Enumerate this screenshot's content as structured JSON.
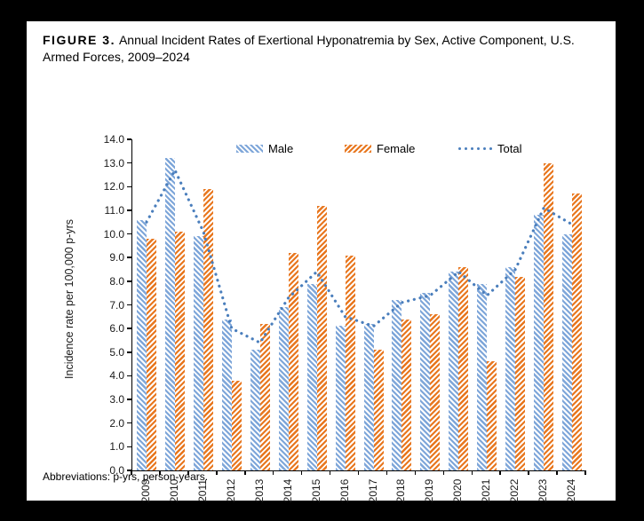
{
  "figure": {
    "label": "FIGURE 3.",
    "title": "Annual Incident Rates of Exertional Hyponatremia by Sex, Active Component, U.S. Armed Forces, 2009–2024"
  },
  "footnote": "Abbreviations: p-yrs, person-years.",
  "colors": {
    "male_bar": "#7ea6d9",
    "female_bar": "#e8771f",
    "total_line": "#4a7ebc",
    "axis": "#000000"
  },
  "chart_data": {
    "type": "bar",
    "subtype": "grouped bars with dotted total line overlay",
    "categories": [
      "2009",
      "2010",
      "2011",
      "2012",
      "2013",
      "2014",
      "2015",
      "2016",
      "2017",
      "2018",
      "2019",
      "2020",
      "2021",
      "2022",
      "2023",
      "2024"
    ],
    "series": [
      {
        "name": "Male",
        "type": "bar",
        "color": "#7ea6d9",
        "hatch": "diagonal-forward",
        "values": [
          10.6,
          13.2,
          9.9,
          6.4,
          5.1,
          6.9,
          7.9,
          6.1,
          6.2,
          7.2,
          7.5,
          8.4,
          7.9,
          8.6,
          10.8,
          10.0
        ]
      },
      {
        "name": "Female",
        "type": "bar",
        "color": "#e8771f",
        "hatch": "diagonal-back",
        "values": [
          9.8,
          10.1,
          11.9,
          3.8,
          6.2,
          9.2,
          11.2,
          9.1,
          5.1,
          6.4,
          6.6,
          8.6,
          4.6,
          8.2,
          13.0,
          11.7
        ]
      },
      {
        "name": "Total",
        "type": "line",
        "style": "dotted",
        "color": "#4a7ebc",
        "values": [
          10.5,
          12.7,
          10.1,
          6.0,
          5.4,
          7.3,
          8.4,
          6.5,
          6.1,
          7.1,
          7.4,
          8.4,
          7.4,
          8.5,
          11.1,
          10.4
        ]
      }
    ],
    "xlabel": "",
    "ylabel": "Incidence rate per 100,000 p-yrs",
    "ylim": [
      0,
      14
    ],
    "ytick_step": 1.0,
    "ytick_labels": [
      "0.0",
      "1.0",
      "2.0",
      "3.0",
      "4.0",
      "5.0",
      "6.0",
      "7.0",
      "8.0",
      "9.0",
      "10.0",
      "11.0",
      "12.0",
      "13.0",
      "14.0"
    ],
    "grid": false,
    "legend_position": "top-inside"
  }
}
